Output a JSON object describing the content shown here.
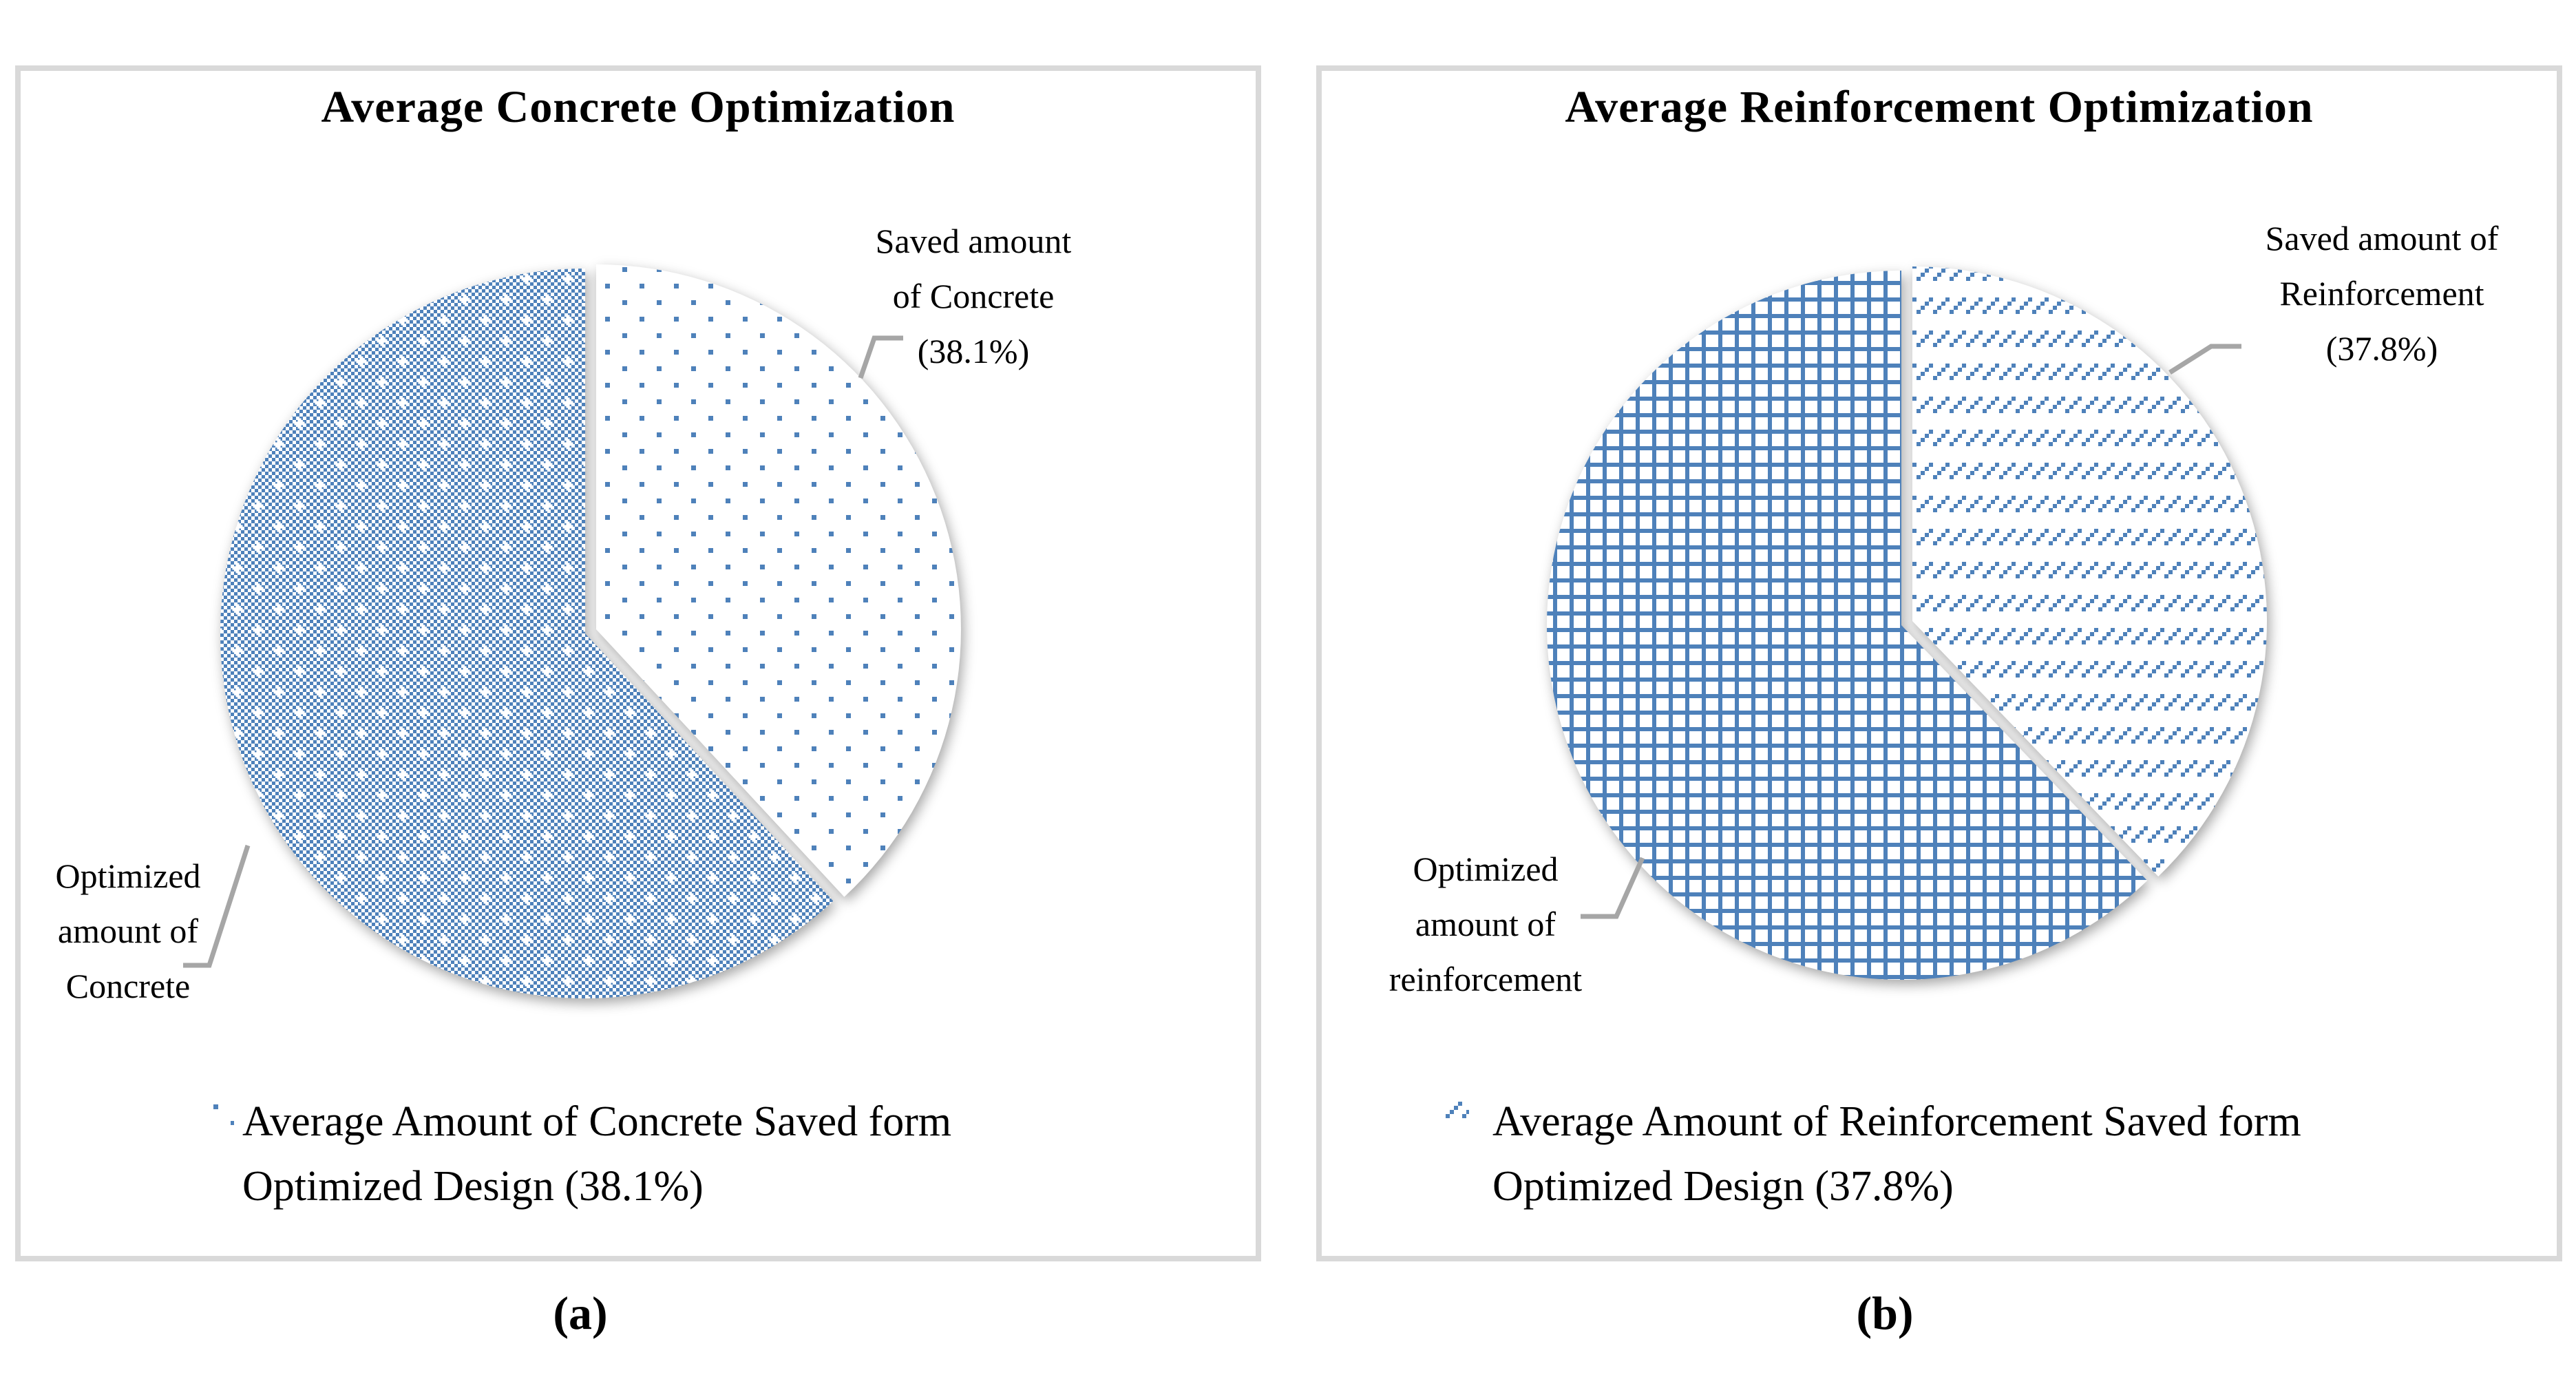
{
  "figure": {
    "background_color": "#ffffff",
    "box_border_color": "#d9d9d9",
    "leader_line_color": "#a6a6a6",
    "pattern_blue": "#4e81ba"
  },
  "charts": [
    {
      "title": "Average Concrete Optimization",
      "caption": "(a)",
      "labels": {
        "saved": {
          "lines": [
            "Saved amount",
            "of Concrete",
            "(38.1%)"
          ]
        },
        "optimized": {
          "lines": [
            "Optimized",
            "amount of",
            "Concrete"
          ]
        }
      },
      "legend": {
        "lines": [
          "Average Amount of Concrete Saved form",
          "Optimized Design (38.1%)"
        ]
      }
    },
    {
      "title": "Average Reinforcement Optimization",
      "caption": "(b)",
      "labels": {
        "saved": {
          "lines": [
            "Saved amount of",
            "Reinforcement",
            "(37.8%)"
          ]
        },
        "optimized": {
          "lines": [
            "Optimized",
            "amount of",
            "reinforcement"
          ]
        }
      },
      "legend": {
        "lines": [
          "Average Amount of Reinforcement Saved form",
          "Optimized Design (37.8%)"
        ]
      }
    }
  ],
  "chart_data": [
    {
      "type": "pie",
      "title": "Average Concrete Optimization",
      "slices": [
        {
          "label": "Saved amount of Concrete",
          "value": 38.1,
          "pattern": "sparse-dots",
          "exploded": true
        },
        {
          "label": "Optimized amount of Concrete",
          "value": 61.9,
          "pattern": "dense-checkerboard",
          "exploded": false
        }
      ],
      "unit": "%",
      "start_angle_deg": 0,
      "direction": "clockwise",
      "legend_position": "bottom",
      "legend_entries": [
        "Average Amount of Concrete Saved form Optimized Design (38.1%)"
      ],
      "accent_color": "#4e81ba"
    },
    {
      "type": "pie",
      "title": "Average Reinforcement Optimization",
      "slices": [
        {
          "label": "Saved amount of Reinforcement",
          "value": 37.8,
          "pattern": "diagonal-dashes",
          "exploded": true
        },
        {
          "label": "Optimized amount of reinforcement",
          "value": 62.2,
          "pattern": "square-grid",
          "exploded": false
        }
      ],
      "unit": "%",
      "start_angle_deg": 0,
      "direction": "clockwise",
      "legend_position": "bottom",
      "legend_entries": [
        "Average Amount of Reinforcement Saved form Optimized Design (37.8%)"
      ],
      "accent_color": "#4e81ba"
    }
  ]
}
